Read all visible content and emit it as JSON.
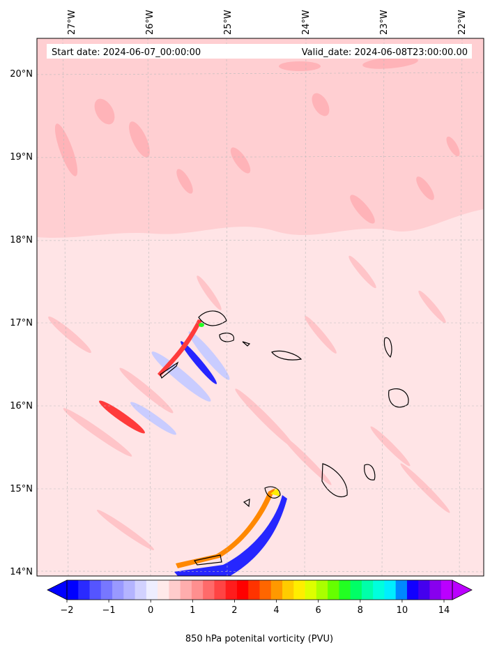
{
  "map": {
    "info": {
      "start_label": "Start date: 2024-06-07_00:00:00",
      "valid_label": "Valid_date: 2024-06-08T23:00:00.00"
    },
    "lon_ticks": [
      {
        "label": "27°W",
        "value": -27
      },
      {
        "label": "26°W",
        "value": -26
      },
      {
        "label": "25°W",
        "value": -25
      },
      {
        "label": "24°W",
        "value": -24
      },
      {
        "label": "23°W",
        "value": -23
      },
      {
        "label": "22°W",
        "value": -22
      }
    ],
    "lat_ticks": [
      {
        "label": "14°N",
        "value": 14
      },
      {
        "label": "15°N",
        "value": 15
      },
      {
        "label": "16°N",
        "value": 16
      },
      {
        "label": "17°N",
        "value": 17
      },
      {
        "label": "18°N",
        "value": 18
      },
      {
        "label": "19°N",
        "value": 19
      },
      {
        "label": "20°N",
        "value": 20
      }
    ],
    "gridlines": true,
    "background_color": "#ffe4e6"
  },
  "colorbar": {
    "label": "850 hPa potenital vorticity (PVU)",
    "ticks": [
      "−2",
      "−1",
      "0",
      "1",
      "2",
      "4",
      "6",
      "8",
      "10",
      "14"
    ],
    "colors": [
      "#0000ff",
      "#2a2aff",
      "#5555ff",
      "#7777ff",
      "#9999ff",
      "#b4b4ff",
      "#d2d2ff",
      "#eeeeff",
      "#ffeaea",
      "#ffcccc",
      "#ffadad",
      "#ff8f8f",
      "#ff6a6a",
      "#ff4444",
      "#ff1c1c",
      "#ff0000",
      "#ff3300",
      "#ff6600",
      "#ff9900",
      "#ffcc00",
      "#ffee00",
      "#ddff00",
      "#aaff00",
      "#66ff00",
      "#22ff22",
      "#00ff66",
      "#00ffaa",
      "#00ffdd",
      "#00eeff",
      "#0088ff",
      "#1100ff",
      "#4400ee",
      "#8800ee",
      "#bb00ff"
    ]
  }
}
